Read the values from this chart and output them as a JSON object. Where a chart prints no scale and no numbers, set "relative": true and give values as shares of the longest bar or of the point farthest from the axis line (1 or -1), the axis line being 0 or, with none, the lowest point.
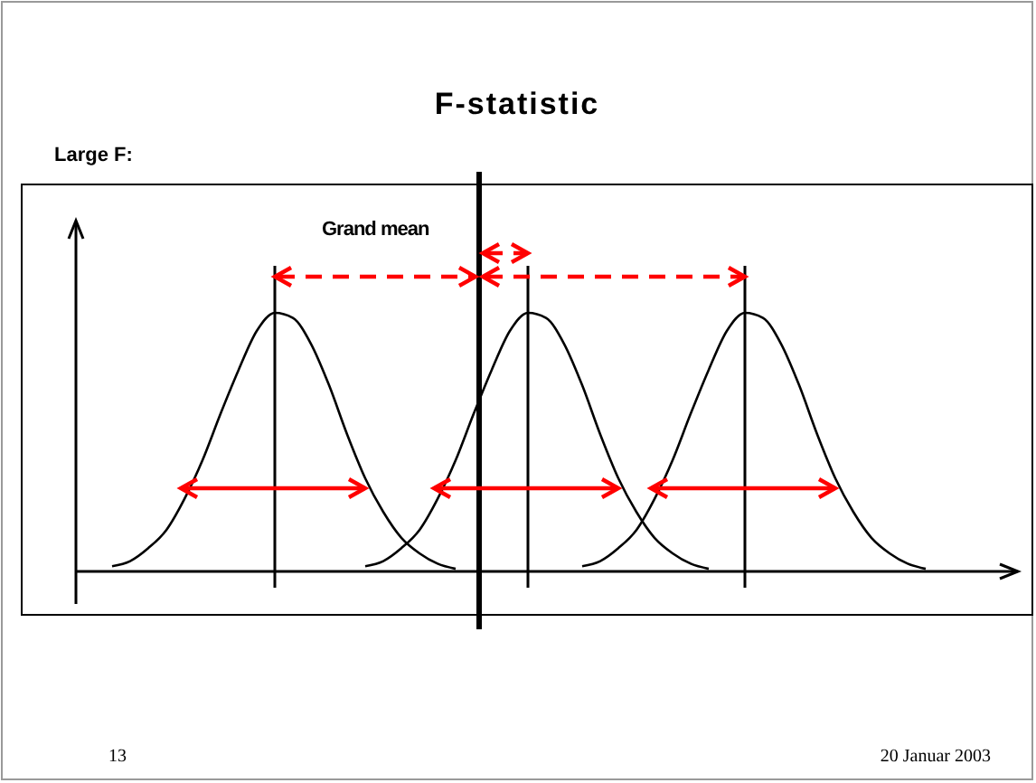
{
  "chart_data": {
    "type": "line",
    "title": "F-statistic",
    "relative": true,
    "annotations": [
      "Large F:",
      "Grand mean",
      "13",
      "20 Januar 2003"
    ],
    "categories": [
      null,
      null,
      null,
      null,
      null,
      null,
      null,
      null,
      null,
      null,
      null,
      null,
      null,
      null,
      null,
      null,
      null,
      null,
      null,
      null,
      null,
      null,
      null,
      null,
      null,
      null,
      null,
      null,
      null,
      null,
      null,
      null,
      null,
      null,
      null,
      null,
      null,
      null,
      null,
      null,
      null,
      null,
      null,
      null,
      null,
      null,
      null,
      null,
      null,
      null,
      null,
      null,
      null
    ],
    "series": [
      {
        "color": "#000000",
        "values": [
          null,
          null,
          0.02,
          0.04,
          0.09,
          0.16,
          0.28,
          0.43,
          0.61,
          0.78,
          0.93,
          1,
          0.98,
          0.88,
          0.72,
          0.53,
          0.36,
          0.23,
          0.13,
          0.07,
          0.03,
          0.01,
          null,
          null,
          null,
          null,
          null,
          null,
          null,
          null,
          null,
          null,
          null,
          null,
          null,
          null,
          null,
          null,
          null,
          null,
          null,
          null,
          null,
          null,
          null,
          null,
          null,
          null,
          null,
          null,
          null,
          null,
          null
        ]
      },
      {
        "color": "#000000",
        "values": [
          null,
          null,
          null,
          null,
          null,
          null,
          null,
          null,
          null,
          null,
          null,
          null,
          null,
          null,
          null,
          null,
          0.02,
          0.04,
          0.09,
          0.16,
          0.28,
          0.43,
          0.61,
          0.78,
          0.93,
          1,
          0.98,
          0.88,
          0.72,
          0.53,
          0.36,
          0.23,
          0.13,
          0.07,
          0.03,
          0.01,
          null,
          null,
          null,
          null,
          null,
          null,
          null,
          null,
          null,
          null,
          null,
          null,
          null,
          null,
          null,
          null,
          null
        ]
      },
      {
        "color": "#000000",
        "values": [
          null,
          null,
          null,
          null,
          null,
          null,
          null,
          null,
          null,
          null,
          null,
          null,
          null,
          null,
          null,
          null,
          null,
          null,
          null,
          null,
          null,
          null,
          null,
          null,
          null,
          null,
          null,
          null,
          0.02,
          0.04,
          0.09,
          0.16,
          0.28,
          0.43,
          0.61,
          0.78,
          0.93,
          1,
          0.98,
          0.88,
          0.72,
          0.53,
          0.36,
          0.23,
          0.13,
          0.07,
          0.03,
          0.01,
          null,
          null,
          null,
          null,
          null
        ]
      }
    ]
  }
}
